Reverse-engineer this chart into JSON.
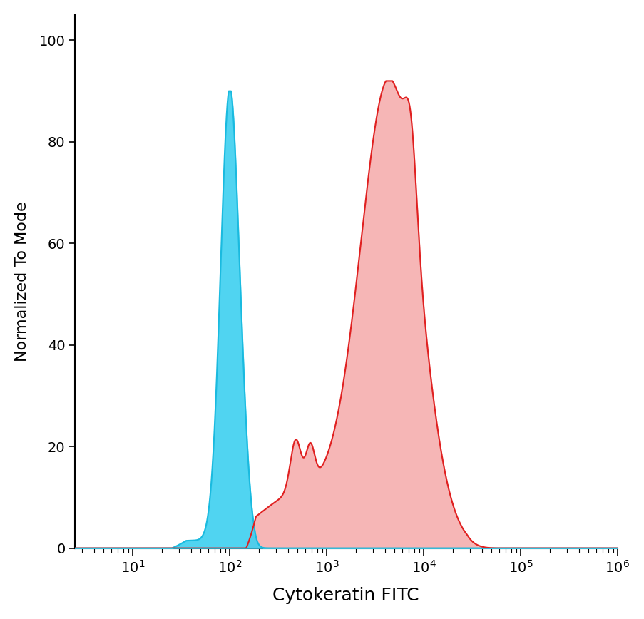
{
  "title": "",
  "xlabel": "Cytokeratin FITC",
  "ylabel": "Normalized To Mode",
  "xlim_log": [
    0.4,
    6.0
  ],
  "ylim": [
    0,
    105
  ],
  "yticks": [
    0,
    20,
    40,
    60,
    80,
    100
  ],
  "blue_fill_color": "#3DD0F0",
  "blue_line_color": "#1ABADF",
  "red_fill_color": "#F5AAAA",
  "red_line_color": "#E02020",
  "background_color": "#FFFFFF",
  "xlabel_fontsize": 18,
  "ylabel_fontsize": 16,
  "tick_fontsize": 14
}
